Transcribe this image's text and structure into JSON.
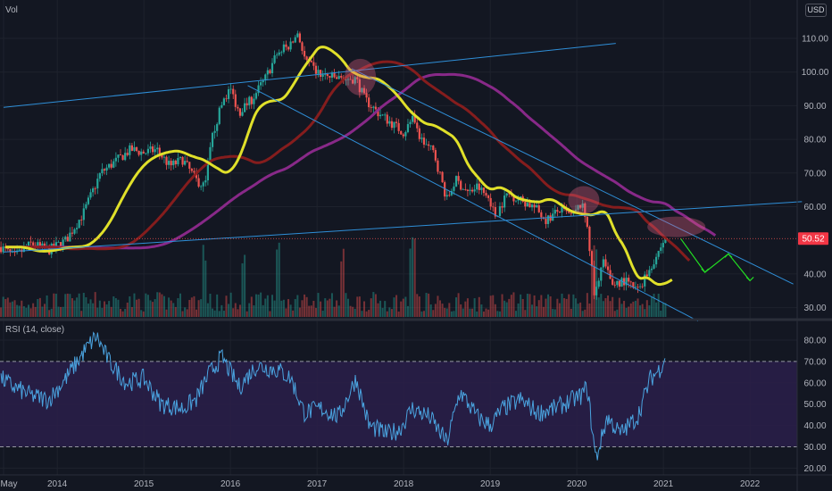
{
  "price_panel": {
    "label": "Vol",
    "currency": "USD",
    "last_price": "50.52",
    "last_price_color": "#f23645"
  },
  "rsi_panel": {
    "label": "RSI (14, close)"
  },
  "colors": {
    "background": "#131722",
    "up_candle": "#26a69a",
    "down_candle": "#ef5350",
    "ma_short": "#e0e02a",
    "ma_mid": "#8b1e1e",
    "ma_long": "#8e2a8e",
    "trendline": "#2f8fd8",
    "rsi_line": "#4aa3df",
    "rsi_band": "#2a1f4a",
    "annotation_circle": "#e06080",
    "projection_arrow": "#22dd22"
  },
  "chart_data": [
    {
      "type": "candlestick",
      "ylim": [
        25,
        115
      ],
      "ytick_labels": [
        "110.00",
        "100.00",
        "90.00",
        "80.00",
        "70.00",
        "60.00",
        "40.00",
        "30.00"
      ],
      "xtick_labels": [
        "May",
        "2014",
        "2015",
        "2016",
        "2017",
        "2018",
        "2019",
        "2020",
        "2021",
        "2022"
      ],
      "price_path": [
        [
          2013.35,
          48
        ],
        [
          2013.5,
          45
        ],
        [
          2013.7,
          49
        ],
        [
          2013.9,
          47
        ],
        [
          2014.1,
          50
        ],
        [
          2014.3,
          58
        ],
        [
          2014.5,
          70
        ],
        [
          2014.7,
          74
        ],
        [
          2014.85,
          77
        ],
        [
          2015.0,
          76
        ],
        [
          2015.15,
          77
        ],
        [
          2015.3,
          72
        ],
        [
          2015.45,
          74
        ],
        [
          2015.6,
          68
        ],
        [
          2015.7,
          66
        ],
        [
          2015.8,
          82
        ],
        [
          2015.92,
          92
        ],
        [
          2016.0,
          95
        ],
        [
          2016.1,
          88
        ],
        [
          2016.25,
          92
        ],
        [
          2016.4,
          98
        ],
        [
          2016.55,
          106
        ],
        [
          2016.7,
          108
        ],
        [
          2016.78,
          112
        ],
        [
          2016.85,
          104
        ],
        [
          2016.95,
          101
        ],
        [
          2017.05,
          99
        ],
        [
          2017.25,
          98
        ],
        [
          2017.45,
          98
        ],
        [
          2017.55,
          92
        ],
        [
          2017.7,
          88
        ],
        [
          2017.85,
          85
        ],
        [
          2018.0,
          82
        ],
        [
          2018.1,
          86
        ],
        [
          2018.2,
          80
        ],
        [
          2018.35,
          76
        ],
        [
          2018.5,
          62
        ],
        [
          2018.6,
          68
        ],
        [
          2018.75,
          64
        ],
        [
          2018.85,
          66
        ],
        [
          2019.0,
          62
        ],
        [
          2019.05,
          57
        ],
        [
          2019.2,
          64
        ],
        [
          2019.35,
          62
        ],
        [
          2019.5,
          60
        ],
        [
          2019.65,
          56
        ],
        [
          2019.8,
          59
        ],
        [
          2019.95,
          57
        ],
        [
          2020.05,
          61
        ],
        [
          2020.12,
          55
        ],
        [
          2020.2,
          34
        ],
        [
          2020.3,
          44
        ],
        [
          2020.4,
          37
        ],
        [
          2020.55,
          38
        ],
        [
          2020.7,
          35
        ],
        [
          2020.85,
          42
        ],
        [
          2020.95,
          47
        ],
        [
          2021.05,
          52
        ]
      ],
      "last_value": 50.52,
      "volume_tallest_at": [
        2015.7,
        2016.15,
        2016.55,
        2017.3,
        2018.1,
        2020.2
      ]
    },
    {
      "type": "line",
      "name": "RSI (14, close)",
      "ylim": [
        15,
        90
      ],
      "ytick_labels": [
        "80.00",
        "70.00",
        "60.00",
        "50.00",
        "40.00",
        "30.00",
        "20.00"
      ],
      "band": [
        30,
        70
      ],
      "values_path": [
        [
          2013.35,
          62
        ],
        [
          2013.5,
          58
        ],
        [
          2013.7,
          54
        ],
        [
          2013.9,
          52
        ],
        [
          2014.1,
          62
        ],
        [
          2014.3,
          74
        ],
        [
          2014.45,
          82
        ],
        [
          2014.6,
          70
        ],
        [
          2014.8,
          60
        ],
        [
          2015.0,
          62
        ],
        [
          2015.2,
          50
        ],
        [
          2015.45,
          48
        ],
        [
          2015.6,
          52
        ],
        [
          2015.75,
          64
        ],
        [
          2015.9,
          72
        ],
        [
          2016.1,
          58
        ],
        [
          2016.3,
          68
        ],
        [
          2016.55,
          66
        ],
        [
          2016.7,
          62
        ],
        [
          2016.85,
          46
        ],
        [
          2017.05,
          48
        ],
        [
          2017.25,
          44
        ],
        [
          2017.45,
          62
        ],
        [
          2017.6,
          40
        ],
        [
          2017.8,
          36
        ],
        [
          2017.95,
          38
        ],
        [
          2018.1,
          48
        ],
        [
          2018.3,
          44
        ],
        [
          2018.5,
          32
        ],
        [
          2018.65,
          56
        ],
        [
          2018.85,
          44
        ],
        [
          2019.0,
          40
        ],
        [
          2019.15,
          48
        ],
        [
          2019.35,
          52
        ],
        [
          2019.55,
          46
        ],
        [
          2019.75,
          48
        ],
        [
          2019.95,
          52
        ],
        [
          2020.05,
          54
        ],
        [
          2020.12,
          58
        ],
        [
          2020.22,
          24
        ],
        [
          2020.35,
          44
        ],
        [
          2020.5,
          36
        ],
        [
          2020.7,
          44
        ],
        [
          2020.85,
          62
        ],
        [
          2020.95,
          66
        ],
        [
          2021.02,
          72
        ]
      ]
    }
  ]
}
